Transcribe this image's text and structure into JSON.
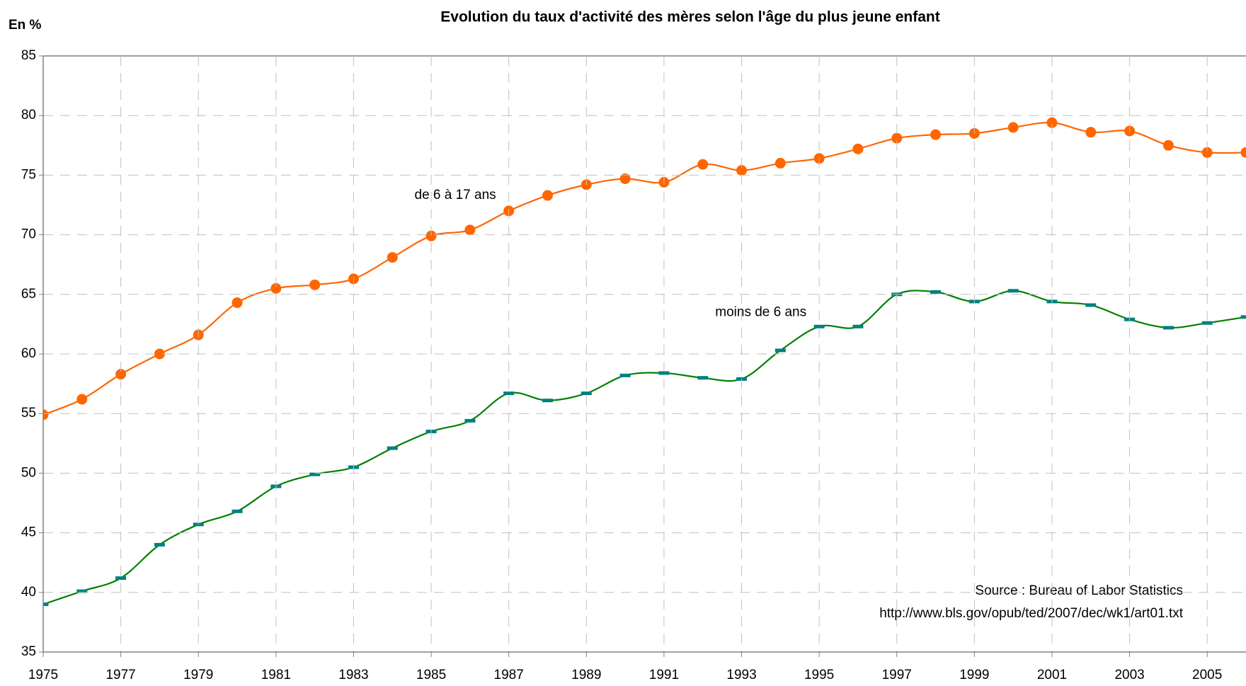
{
  "chart_data": {
    "type": "line",
    "title": "Evolution du taux d'activité des mères selon l'âge du plus jeune enfant",
    "y_label": "En %",
    "x": [
      1975,
      1976,
      1977,
      1978,
      1979,
      1980,
      1981,
      1982,
      1983,
      1984,
      1985,
      1986,
      1987,
      1988,
      1989,
      1990,
      1991,
      1992,
      1993,
      1994,
      1995,
      1996,
      1997,
      1998,
      1999,
      2000,
      2001,
      2002,
      2003,
      2004,
      2005,
      2006
    ],
    "series": [
      {
        "name": "de 6 à 17 ans",
        "color": "#ff6600",
        "marker": "circle",
        "values": [
          54.9,
          56.2,
          58.3,
          60.0,
          61.6,
          64.3,
          65.5,
          65.8,
          66.3,
          68.1,
          69.9,
          70.4,
          72.0,
          73.3,
          74.2,
          74.7,
          74.4,
          75.9,
          75.4,
          76.0,
          76.4,
          77.2,
          78.1,
          78.4,
          78.5,
          79.0,
          79.4,
          78.6,
          78.7,
          77.5,
          76.9,
          76.9
        ]
      },
      {
        "name": "moins de 6 ans",
        "color": "#008000",
        "marker": "dash",
        "values": [
          39.0,
          40.1,
          41.2,
          44.0,
          45.7,
          46.8,
          48.9,
          49.9,
          50.5,
          52.1,
          53.5,
          54.4,
          56.7,
          56.1,
          56.7,
          58.2,
          58.4,
          58.0,
          57.9,
          60.3,
          62.3,
          62.3,
          65.0,
          65.2,
          64.4,
          65.3,
          64.4,
          64.1,
          62.9,
          62.2,
          62.6,
          63.1
        ]
      }
    ],
    "xlim": [
      1975,
      2006
    ],
    "xticks": [
      1975,
      1977,
      1979,
      1981,
      1983,
      1985,
      1987,
      1989,
      1991,
      1993,
      1995,
      1997,
      1999,
      2001,
      2003,
      2005
    ],
    "ylim": [
      35,
      85
    ],
    "yticks": [
      35,
      40,
      45,
      50,
      55,
      60,
      65,
      70,
      75,
      80,
      85
    ],
    "grid": true,
    "annotations": [
      "Source : Bureau of Labor Statistics",
      "http://www.bls.gov/opub/ted/2007/dec/wk1/art01.txt"
    ]
  }
}
